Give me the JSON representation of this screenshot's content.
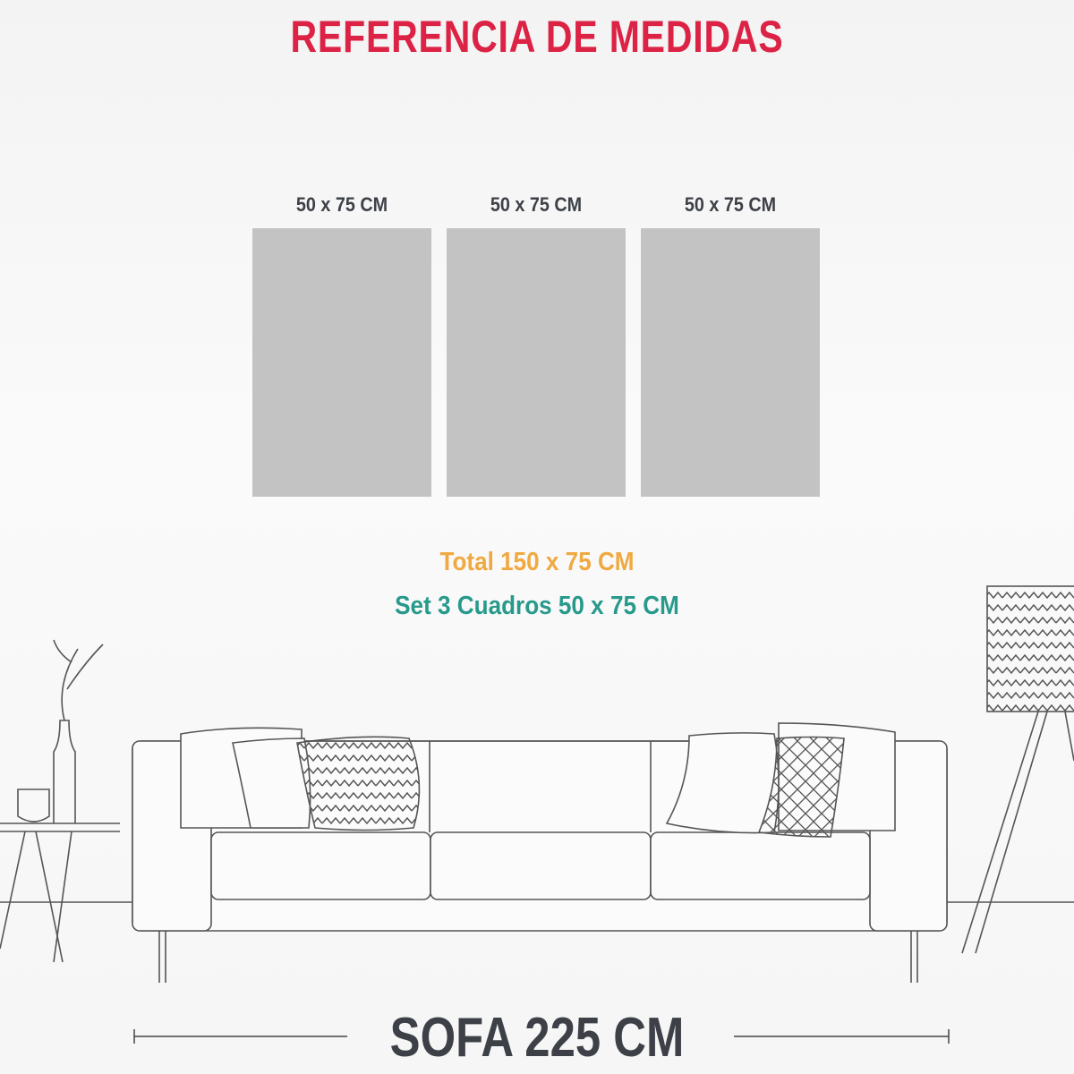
{
  "title": "REFERENCIA DE MEDIDAS",
  "panels": [
    {
      "label": "50 x 75 CM"
    },
    {
      "label": "50 x 75 CM"
    },
    {
      "label": "50 x 75 CM"
    }
  ],
  "total": "Total 150 x 75 CM",
  "set": "Set 3 Cuadros 50 x 75 CM",
  "sofa_label": "SOFA 225 CM",
  "colors": {
    "title": "#dc2245",
    "total": "#f0a940",
    "set": "#279a8b",
    "panel": "#c3c3c3",
    "text": "#3d4147"
  }
}
